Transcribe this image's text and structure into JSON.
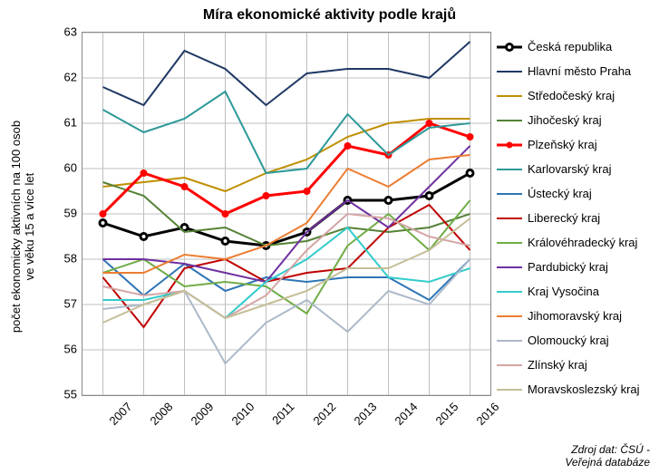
{
  "title": "Míra ekonomické aktivity podle krajů",
  "y_axis_label": "počet ekonomicky aktivních na 100 osob\nve věku 15 a více let",
  "source": "Zdroj dat: ČSÚ -\nVeřejná databáze",
  "chart": {
    "type": "line",
    "x_categories": [
      "2007",
      "2008",
      "2009",
      "2010",
      "2011",
      "2012",
      "2013",
      "2014",
      "2015",
      "2016"
    ],
    "ylim": [
      55,
      63
    ],
    "ytick_step": 1,
    "background_color": "#ffffff",
    "grid_color": "#bfbfbf",
    "border_color": "#888888",
    "x_label_rotation_deg": -45,
    "tick_fontsize": 13,
    "axis_label_fontsize": 13,
    "title_fontsize": 16,
    "legend_fontsize": 13,
    "series": [
      {
        "name": "Česká republika",
        "color": "#000000",
        "line_width": 3,
        "marker": "circle-open",
        "marker_size": 7,
        "values": [
          58.8,
          58.5,
          58.7,
          58.4,
          58.3,
          58.6,
          59.3,
          59.3,
          59.4,
          59.9
        ]
      },
      {
        "name": "Hlavní město Praha",
        "color": "#1f3864",
        "line_width": 2,
        "marker": "none",
        "values": [
          61.8,
          61.4,
          62.6,
          62.2,
          61.4,
          62.1,
          62.2,
          62.2,
          62.0,
          62.8
        ]
      },
      {
        "name": "Středočeský kraj",
        "color": "#bf8f00",
        "line_width": 2,
        "marker": "none",
        "values": [
          59.6,
          59.7,
          59.8,
          59.5,
          59.9,
          60.2,
          60.7,
          61.0,
          61.1,
          61.1
        ]
      },
      {
        "name": "Jihočeský kraj",
        "color": "#548235",
        "line_width": 2,
        "marker": "none",
        "values": [
          59.7,
          59.4,
          58.6,
          58.7,
          58.3,
          58.4,
          58.7,
          58.6,
          58.7,
          59.0
        ]
      },
      {
        "name": "Plzeňský kraj",
        "color": "#ff0000",
        "line_width": 3,
        "marker": "circle",
        "marker_size": 7,
        "values": [
          59.0,
          59.9,
          59.6,
          59.0,
          59.4,
          59.5,
          60.5,
          60.3,
          61.0,
          60.7
        ]
      },
      {
        "name": "Karlovarský kraj",
        "color": "#2e9999",
        "line_width": 2,
        "marker": "none",
        "values": [
          61.3,
          60.8,
          61.1,
          61.7,
          59.9,
          60.0,
          61.2,
          60.3,
          60.9,
          61.0
        ]
      },
      {
        "name": "Ústecký kraj",
        "color": "#2e75b6",
        "line_width": 2,
        "marker": "none",
        "values": [
          58.0,
          57.2,
          57.9,
          57.3,
          57.6,
          57.5,
          57.6,
          57.6,
          57.1,
          58.0
        ]
      },
      {
        "name": "Liberecký kraj",
        "color": "#c00000",
        "line_width": 2,
        "marker": "none",
        "values": [
          57.6,
          56.5,
          57.8,
          58.0,
          57.5,
          57.7,
          57.8,
          58.7,
          59.2,
          58.2
        ]
      },
      {
        "name": "Královéhradecký kraj",
        "color": "#70ad47",
        "line_width": 2,
        "marker": "none",
        "values": [
          57.7,
          58.0,
          57.4,
          57.5,
          57.4,
          56.8,
          58.3,
          59.0,
          58.2,
          59.3
        ]
      },
      {
        "name": "Pardubický kraj",
        "color": "#7030a0",
        "line_width": 2,
        "marker": "none",
        "values": [
          58.0,
          58.0,
          57.9,
          57.7,
          57.5,
          58.6,
          59.3,
          58.7,
          59.6,
          60.5
        ]
      },
      {
        "name": "Kraj Vysočina",
        "color": "#33cccc",
        "line_width": 2,
        "marker": "none",
        "values": [
          57.1,
          57.1,
          57.3,
          56.7,
          57.5,
          58.0,
          58.7,
          57.6,
          57.5,
          57.8
        ]
      },
      {
        "name": "Jihomoravský kraj",
        "color": "#ed7d31",
        "line_width": 2,
        "marker": "none",
        "values": [
          57.7,
          57.7,
          58.1,
          58.0,
          58.3,
          58.8,
          60.0,
          59.6,
          60.2,
          60.3
        ]
      },
      {
        "name": "Olomoucký kraj",
        "color": "#adb9ca",
        "line_width": 2,
        "marker": "none",
        "values": [
          56.9,
          57.0,
          57.3,
          55.7,
          56.6,
          57.1,
          56.4,
          57.3,
          57.0,
          58.0
        ]
      },
      {
        "name": "Zlínský kraj",
        "color": "#d4a5a5",
        "line_width": 2,
        "marker": "none",
        "values": [
          57.4,
          57.2,
          57.3,
          56.7,
          57.2,
          58.2,
          59.0,
          58.9,
          58.5,
          58.3
        ]
      },
      {
        "name": "Moravskoslezský kraj",
        "color": "#c5be97",
        "line_width": 2,
        "marker": "none",
        "values": [
          56.6,
          57.0,
          57.3,
          56.7,
          57.0,
          57.3,
          57.8,
          57.8,
          58.2,
          58.9
        ]
      }
    ]
  }
}
